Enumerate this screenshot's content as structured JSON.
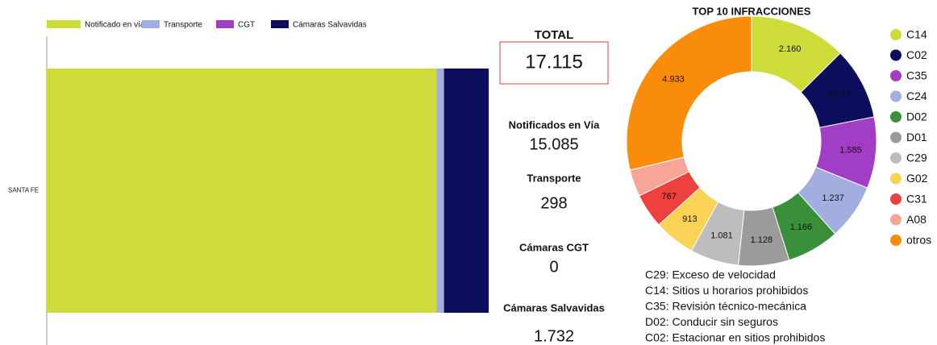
{
  "chart_data": [
    {
      "type": "stacked-bar-horizontal",
      "categories": [
        "SANTA FE"
      ],
      "series": [
        {
          "name": "Notificado en vía",
          "color": "#cddc39",
          "values": [
            15085
          ]
        },
        {
          "name": "Transporte",
          "color": "#a3aee0",
          "values": [
            298
          ]
        },
        {
          "name": "CGT",
          "color": "#a23dc5",
          "values": [
            0
          ]
        },
        {
          "name": "Cámaras Salvavidas",
          "color": "#0d0d5e",
          "values": [
            1732
          ]
        }
      ],
      "xlim": [
        0,
        17300
      ]
    },
    {
      "type": "donut",
      "title": "TOP 10 INFRACCIONES",
      "categories": [
        "C14",
        "C02",
        "C35",
        "C24",
        "D02",
        "D01",
        "C29",
        "G02",
        "C31",
        "A08",
        "otros"
      ],
      "values": [
        2160,
        1599,
        1585,
        1237,
        1166,
        1128,
        1081,
        913,
        767,
        600,
        4933
      ],
      "value_labels": [
        "2.160",
        "1.599",
        "1.585",
        "1.237",
        "1.166",
        "1.128",
        "1.081",
        "913",
        "767",
        null,
        "4.933"
      ],
      "colors": [
        "#cddc39",
        "#0d0d5e",
        "#a23dc5",
        "#a3aee0",
        "#3a8f3a",
        "#9b9b9b",
        "#bdbdbd",
        "#f9d256",
        "#ef4040",
        "#f7a596",
        "#f98c0a"
      ]
    }
  ],
  "kpis": {
    "total": {
      "label": "TOTAL",
      "value": "17.115"
    },
    "items": [
      {
        "label": "Notificados en Vía",
        "value": "15.085",
        "color": "#c5d92d"
      },
      {
        "label": "Transporte",
        "value": "298",
        "color": "#a3aee0"
      },
      {
        "label": "Cámaras CGT",
        "value": "0",
        "color": "#a83cc5"
      },
      {
        "label": "Cámaras Salvavidas",
        "value": "1.732",
        "color": "#111133"
      }
    ]
  },
  "notes": [
    "C29: Exceso de velocidad",
    "C14: Sitios u horarios prohibidos",
    "C35: Revisión técnico-mecánica",
    "D02: Conducir sin seguros",
    "C02: Estacionar en sitios prohibidos"
  ]
}
